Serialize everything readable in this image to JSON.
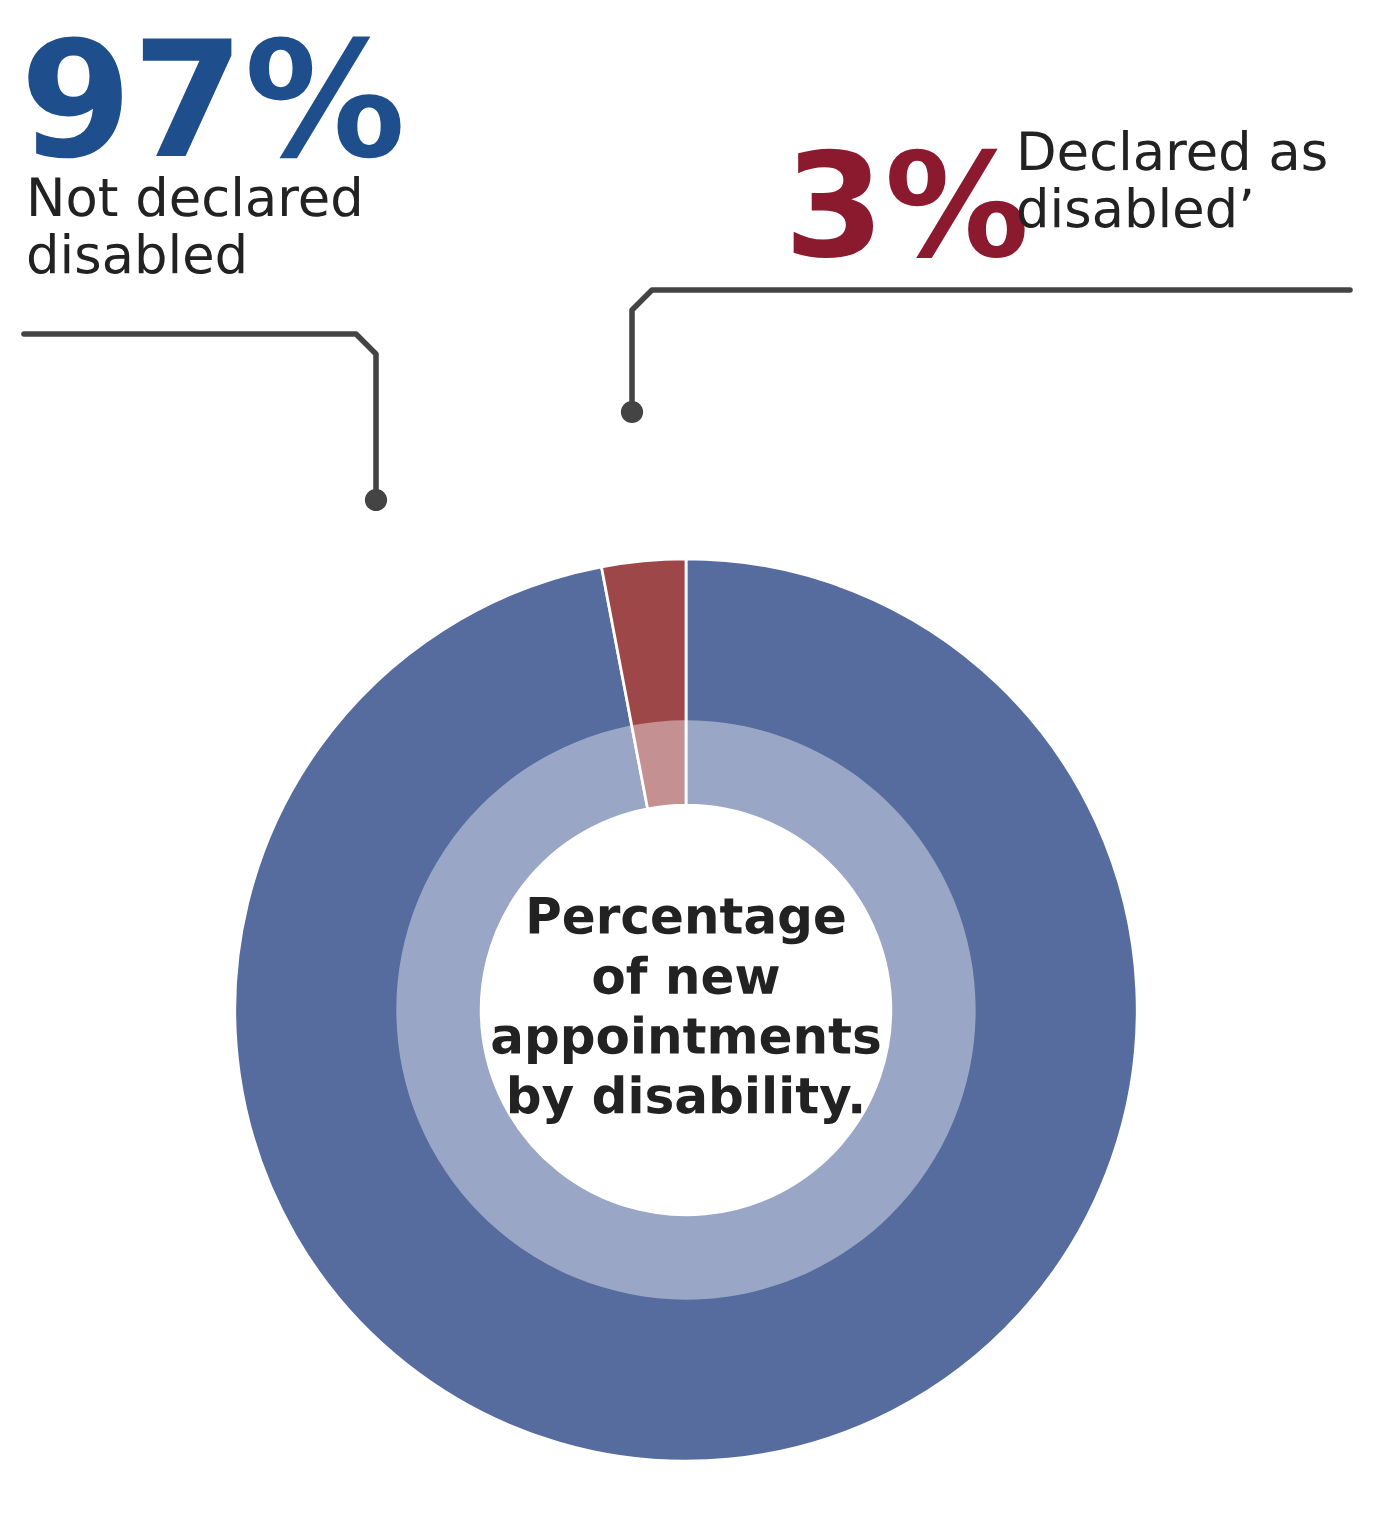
{
  "chart_data": {
    "type": "donut",
    "title": "Percentage\nof new\nappointments\nby disability.",
    "categories": [
      "Not declared\ndisabled",
      "Declared as\ndisabled’"
    ],
    "values": [
      97,
      3
    ],
    "value_labels": [
      "97%",
      "3%"
    ],
    "colors": [
      "#566c9f",
      "#9e4749"
    ],
    "legend": false
  }
}
